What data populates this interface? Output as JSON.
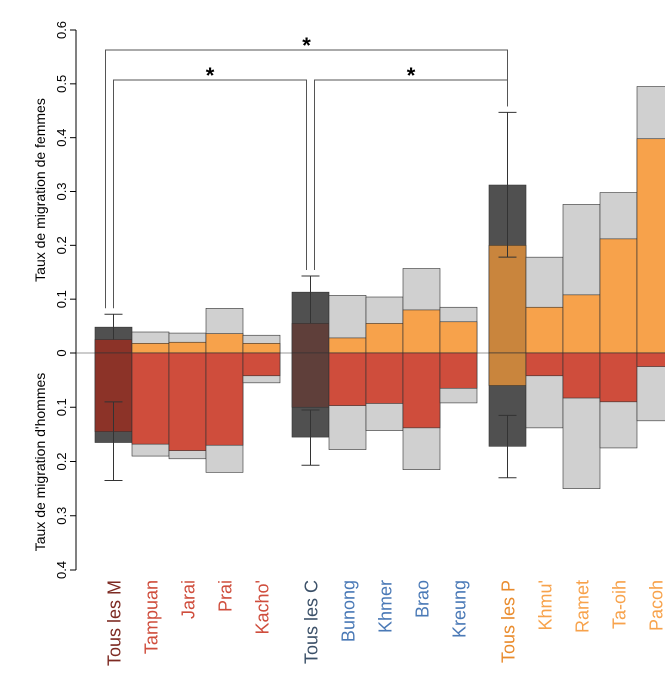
{
  "chart_data": {
    "type": "bar",
    "description_hidden": "",
    "ylabel_top": "Taux de migration de femmes",
    "ylabel_bottom": "Taux de migration d'hommes",
    "yticks_top": [
      "0",
      "0.1",
      "0.2",
      "0.3",
      "0.4",
      "0.5",
      "0.6"
    ],
    "yticks_bottom": [
      "0.1",
      "0.2",
      "0.3",
      "0.4"
    ],
    "ylim_top": [
      0,
      0.6
    ],
    "ylim_bottom": [
      0,
      0.4
    ],
    "colors": {
      "grey": "#d0d0d0",
      "group_M": "#cf4d3c",
      "group_C": "#4a79b6",
      "group_P": "#f7a24b",
      "dark": "#505050",
      "overlay_M": "#8c3328",
      "overlay_C": "#5f3f3a",
      "overlay_P": "#c9853d"
    },
    "categories": [
      {
        "label": "Tous les M",
        "group": "M",
        "kind": "all",
        "f_low": 0.019,
        "f_mid": 0.025,
        "f_high": 0.048,
        "f_err": [
          0.0,
          0.072
        ],
        "m_mid": 0.145,
        "m_high": 0.165,
        "m_err": [
          0.09,
          0.235
        ]
      },
      {
        "label": "Tampuan",
        "group": "M",
        "kind": "single",
        "f_mid": 0.018,
        "f_high": 0.039,
        "m_mid": 0.168,
        "m_high": 0.19
      },
      {
        "label": "Jarai",
        "group": "M",
        "kind": "single",
        "f_mid": 0.02,
        "f_high": 0.037,
        "m_mid": 0.18,
        "m_high": 0.195
      },
      {
        "label": "Prai",
        "group": "M",
        "kind": "single",
        "f_mid": 0.036,
        "f_high": 0.083,
        "m_mid": 0.17,
        "m_high": 0.22
      },
      {
        "label": "Kacho'",
        "group": "M",
        "kind": "single",
        "f_mid": 0.018,
        "f_high": 0.033,
        "m_mid": 0.042,
        "m_high": 0.055
      },
      {
        "label": "Tous les C",
        "group": "C",
        "kind": "all",
        "f_low": 0.035,
        "f_mid": 0.055,
        "f_high": 0.113,
        "f_err": [
          0.0,
          0.143
        ],
        "m_mid": 0.1,
        "m_high": 0.155,
        "m_err": [
          0.105,
          0.207
        ]
      },
      {
        "label": "Bunong",
        "group": "C",
        "kind": "single",
        "f_mid": 0.028,
        "f_high": 0.107,
        "m_mid": 0.097,
        "m_high": 0.178
      },
      {
        "label": "Khmer",
        "group": "C",
        "kind": "single",
        "f_mid": 0.055,
        "f_high": 0.104,
        "m_mid": 0.093,
        "m_high": 0.143
      },
      {
        "label": "Brao",
        "group": "C",
        "kind": "single",
        "f_mid": 0.08,
        "f_high": 0.157,
        "m_mid": 0.138,
        "m_high": 0.215
      },
      {
        "label": "Kreung",
        "group": "C",
        "kind": "single",
        "f_mid": 0.058,
        "f_high": 0.085,
        "m_mid": 0.065,
        "m_high": 0.092
      },
      {
        "label": "Tous les P",
        "group": "P",
        "kind": "all",
        "f_low": 0.2,
        "f_mid": 0.2,
        "f_high": 0.312,
        "f_err": [
          0.178,
          0.447
        ],
        "m_mid": 0.06,
        "m_high": 0.172,
        "m_err": [
          0.115,
          0.23
        ]
      },
      {
        "label": "Khmu'",
        "group": "P",
        "kind": "single",
        "f_mid": 0.085,
        "f_high": 0.178,
        "m_mid": 0.042,
        "m_high": 0.138
      },
      {
        "label": "Ramet",
        "group": "P",
        "kind": "single",
        "f_mid": 0.108,
        "f_high": 0.276,
        "m_mid": 0.083,
        "m_high": 0.25
      },
      {
        "label": "Ta-oih",
        "group": "P",
        "kind": "single",
        "f_mid": 0.212,
        "f_high": 0.298,
        "m_mid": 0.09,
        "m_high": 0.175
      },
      {
        "label": "Pacoh",
        "group": "P",
        "kind": "single",
        "f_mid": 0.398,
        "f_high": 0.495,
        "m_mid": 0.025,
        "m_high": 0.125
      }
    ],
    "significance": [
      {
        "from": 0,
        "to": 10,
        "label": "*",
        "level": 1
      },
      {
        "from": 0,
        "to": 5,
        "label": "*",
        "level": 2
      },
      {
        "from": 5,
        "to": 10,
        "label": "*",
        "level": 2
      }
    ]
  }
}
